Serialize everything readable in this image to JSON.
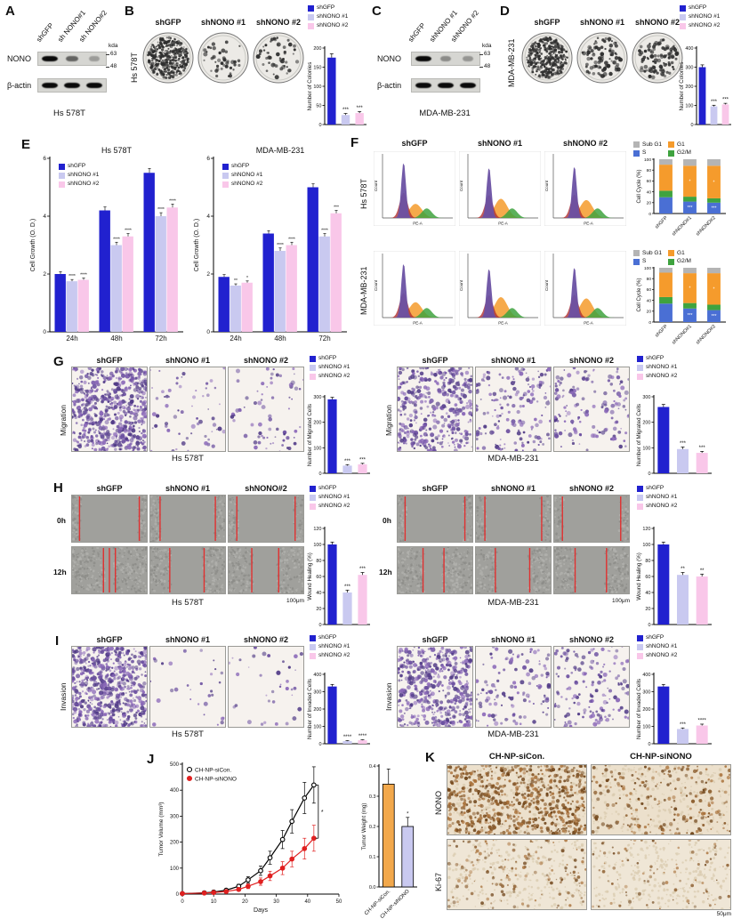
{
  "labels": {
    "panelA": {
      "letter": "A",
      "lanes": [
        "shGFP",
        "sh NONO#1",
        "sh NONO#2"
      ],
      "protein1": "NONO",
      "protein2": "β-actin",
      "kda": "kda",
      "mw1": "63",
      "mw2": "48",
      "cell": "Hs 578T"
    },
    "panelB": {
      "letter": "B",
      "side": "Hs 578T",
      "cols": [
        "shGFP",
        "shNONO #1",
        "shNONO #2"
      ]
    },
    "panelC": {
      "letter": "C",
      "lanes": [
        "shGFP",
        "shNONO #1",
        "shNONO #2"
      ],
      "protein1": "NONO",
      "protein2": "β-actin",
      "kda": "kda",
      "mw1": "63",
      "mw2": "48",
      "cell": "MDA-MB-231"
    },
    "panelD": {
      "letter": "D",
      "side": "MDA-MB-231",
      "cols": [
        "shGFP",
        "shNONO #1",
        "shNONO #2"
      ]
    },
    "panelE": {
      "letter": "E"
    },
    "panelF": {
      "letter": "F",
      "cols": [
        "shGFP",
        "shNONO #1",
        "shNONO #2"
      ],
      "row1": "Hs 578T",
      "row2": "MDA-MB-231"
    },
    "panelG": {
      "letter": "G",
      "side": "Migration",
      "cols": [
        "shGFP",
        "shNONO #1",
        "shNONO #2"
      ],
      "cell_left": "Hs 578T",
      "cell_right": "MDA-MB-231"
    },
    "panelH": {
      "letter": "H",
      "cols_left": [
        "shGFP",
        "shNONO #1",
        "shNONO#2"
      ],
      "cols_right": [
        "shGFP",
        "shNONO #1",
        "shNONO #2"
      ],
      "rows": [
        "0h",
        "12h"
      ],
      "cell_left": "Hs 578T",
      "cell_right": "MDA-MB-231",
      "scale": "100μm"
    },
    "panelI": {
      "letter": "I",
      "side": "Invasion",
      "cols": [
        "shGFP",
        "shNONO #1",
        "shNONO #2"
      ],
      "cell_left": "Hs 578T",
      "cell_right": "MDA-MB-231"
    },
    "panelJ": {
      "letter": "J"
    },
    "panelK": {
      "letter": "K",
      "cols": [
        "CH-NP-siCon.",
        "CH-NP-siNONO"
      ],
      "rows": [
        "NONO",
        "Ki-67"
      ],
      "scale": "50μm"
    }
  },
  "colors": {
    "shGFP": "#2121cf",
    "shNONO1": "#c9c9f0",
    "shNONO2": "#f9c7e9",
    "siCon_line": "#000000",
    "siNONO_line": "#e02020",
    "cycle_S": "#4a6fd4",
    "cycle_G2M": "#3fa33f",
    "cycle_G1": "#f59b2c",
    "cycle_SubG1": "#b4b4b4"
  },
  "chart_data": [
    {
      "id": "colonies_hs578t",
      "type": "bar",
      "ylabel": "Number of Colonies",
      "ylim": [
        0,
        200
      ],
      "yticks": [
        0,
        50,
        100,
        150,
        200
      ],
      "categories": [
        "shGFP",
        "shNONO #1",
        "shNONO #2"
      ],
      "values": [
        175,
        25,
        30
      ],
      "err": [
        10,
        4,
        4
      ],
      "sig": [
        "",
        "***",
        "***"
      ],
      "colors": [
        "#2121cf",
        "#c9c9f0",
        "#f9c7e9"
      ],
      "show_xlabels": false
    },
    {
      "id": "colonies_mda",
      "type": "bar",
      "ylabel": "Number of Colonies",
      "ylim": [
        0,
        400
      ],
      "yticks": [
        0,
        100,
        200,
        300,
        400
      ],
      "categories": [
        "shGFP",
        "shNONO #1",
        "shNONO #2"
      ],
      "values": [
        300,
        95,
        105
      ],
      "err": [
        12,
        6,
        6
      ],
      "sig": [
        "",
        "***",
        "***"
      ],
      "colors": [
        "#2121cf",
        "#c9c9f0",
        "#f9c7e9"
      ],
      "show_xlabels": false
    },
    {
      "id": "growth_hs578t",
      "type": "groupbar",
      "title": "Hs 578T",
      "ylabel": "Cell Growth (O. D.)",
      "ylim": [
        0,
        6
      ],
      "yticks": [
        0,
        2,
        4,
        6
      ],
      "categories": [
        "24h",
        "48h",
        "72h"
      ],
      "series": [
        {
          "name": "shGFP",
          "color": "#2121cf",
          "values": [
            2.0,
            4.2,
            5.5
          ],
          "err": [
            0.08,
            0.12,
            0.15
          ],
          "sig": [
            "",
            "",
            ""
          ]
        },
        {
          "name": "shNONO #1",
          "color": "#c9c9f0",
          "values": [
            1.75,
            3.0,
            4.0
          ],
          "err": [
            0.06,
            0.1,
            0.12
          ],
          "sig": [
            "****",
            "****",
            "****"
          ]
        },
        {
          "name": "shNONO #2",
          "color": "#f9c7e9",
          "values": [
            1.8,
            3.3,
            4.3
          ],
          "err": [
            0.06,
            0.1,
            0.12
          ],
          "sig": [
            "****",
            "****",
            "****"
          ]
        }
      ]
    },
    {
      "id": "growth_mda",
      "type": "groupbar",
      "title": "MDA-MB-231",
      "ylabel": "Cell Growth (O. D.)",
      "ylim": [
        0,
        6
      ],
      "yticks": [
        0,
        2,
        4,
        6
      ],
      "categories": [
        "24h",
        "48h",
        "72h"
      ],
      "series": [
        {
          "name": "shGFP",
          "color": "#2121cf",
          "values": [
            1.9,
            3.4,
            5.0
          ],
          "err": [
            0.08,
            0.1,
            0.12
          ],
          "sig": [
            "",
            "",
            ""
          ]
        },
        {
          "name": "shNONO #1",
          "color": "#c9c9f0",
          "values": [
            1.6,
            2.8,
            3.3
          ],
          "err": [
            0.06,
            0.1,
            0.1
          ],
          "sig": [
            "**",
            "****",
            "****"
          ]
        },
        {
          "name": "shNONO #2",
          "color": "#f9c7e9",
          "values": [
            1.7,
            3.0,
            4.1
          ],
          "err": [
            0.06,
            0.1,
            0.1
          ],
          "sig": [
            "*",
            "****",
            "***"
          ]
        }
      ]
    },
    {
      "id": "cycle_hs578t",
      "type": "stacked",
      "ylabel": "Cell Cycle (%)",
      "ylim": [
        0,
        100
      ],
      "yticks": [
        0,
        20,
        40,
        60,
        80,
        100
      ],
      "categories": [
        "shGFP",
        "shNONO#1",
        "shNONO#2"
      ],
      "series": [
        {
          "name": "S",
          "color": "#4a6fd4",
          "values": [
            30,
            22,
            20
          ]
        },
        {
          "name": "G2/M",
          "color": "#3fa33f",
          "values": [
            12,
            9,
            8
          ]
        },
        {
          "name": "G1",
          "color": "#f59b2c",
          "values": [
            48,
            57,
            60
          ]
        },
        {
          "name": "Sub G1",
          "color": "#b4b4b4",
          "values": [
            10,
            12,
            12
          ]
        }
      ],
      "legend_order": [
        "Sub G1",
        "G1",
        "S",
        "G2/M"
      ],
      "seg_sig": [
        [
          1,
          0,
          "***"
        ],
        [
          2,
          0,
          "***"
        ],
        [
          1,
          2,
          "*"
        ],
        [
          2,
          2,
          "*"
        ]
      ]
    },
    {
      "id": "cycle_mda",
      "type": "stacked",
      "ylabel": "Cell Cycle (%)",
      "ylim": [
        0,
        100
      ],
      "yticks": [
        0,
        20,
        40,
        60,
        80,
        100
      ],
      "categories": [
        "shGFP",
        "shNONO#1",
        "shNONO#2"
      ],
      "series": [
        {
          "name": "S",
          "color": "#4a6fd4",
          "values": [
            34,
            25,
            22
          ]
        },
        {
          "name": "G2/M",
          "color": "#3fa33f",
          "values": [
            12,
            10,
            10
          ]
        },
        {
          "name": "G1",
          "color": "#f59b2c",
          "values": [
            45,
            55,
            58
          ]
        },
        {
          "name": "Sub G1",
          "color": "#b4b4b4",
          "values": [
            9,
            10,
            10
          ]
        }
      ],
      "legend_order": [
        "Sub G1",
        "G1",
        "S",
        "G2/M"
      ],
      "seg_sig": [
        [
          1,
          0,
          "***"
        ],
        [
          2,
          0,
          "***"
        ],
        [
          1,
          2,
          "*"
        ],
        [
          2,
          2,
          "*"
        ]
      ]
    },
    {
      "id": "migration_hs578t",
      "type": "bar",
      "ylabel": "Number of Migrated Cells",
      "ylim": [
        0,
        300
      ],
      "yticks": [
        0,
        100,
        200,
        300
      ],
      "categories": [
        "shGFP",
        "shNONO #1",
        "shNONO #2"
      ],
      "values": [
        290,
        30,
        35
      ],
      "err": [
        8,
        4,
        4
      ],
      "sig": [
        "",
        "***",
        "***"
      ],
      "colors": [
        "#2121cf",
        "#c9c9f0",
        "#f9c7e9"
      ],
      "show_xlabels": false
    },
    {
      "id": "migration_mda",
      "type": "bar",
      "ylabel": "Number of Migrated Cells",
      "ylim": [
        0,
        300
      ],
      "yticks": [
        0,
        100,
        200,
        300
      ],
      "categories": [
        "shGFP",
        "shNONO #1",
        "shNONO #2"
      ],
      "values": [
        260,
        95,
        80
      ],
      "err": [
        10,
        8,
        6
      ],
      "sig": [
        "",
        "***",
        "***"
      ],
      "colors": [
        "#2121cf",
        "#c9c9f0",
        "#f9c7e9"
      ],
      "show_xlabels": false
    },
    {
      "id": "wound_hs578t",
      "type": "bar",
      "ylabel": "Wound Healing (%)",
      "ylim": [
        0,
        120
      ],
      "yticks": [
        0,
        20,
        40,
        60,
        80,
        100,
        120
      ],
      "categories": [
        "shGFP",
        "shNONO #1",
        "shNONO #2"
      ],
      "values": [
        100,
        40,
        62
      ],
      "err": [
        3,
        3,
        3
      ],
      "sig": [
        "",
        "***",
        "***"
      ],
      "colors": [
        "#2121cf",
        "#c9c9f0",
        "#f9c7e9"
      ],
      "show_xlabels": false
    },
    {
      "id": "wound_mda",
      "type": "bar",
      "ylabel": "Wound Healing (%)",
      "ylim": [
        0,
        120
      ],
      "yticks": [
        0,
        20,
        40,
        60,
        80,
        100,
        120
      ],
      "categories": [
        "shGFP",
        "shNONO #1",
        "shNONO #2"
      ],
      "values": [
        100,
        62,
        60
      ],
      "err": [
        3,
        3,
        3
      ],
      "sig": [
        "",
        "**",
        "**"
      ],
      "colors": [
        "#2121cf",
        "#c9c9f0",
        "#f9c7e9"
      ],
      "show_xlabels": false
    },
    {
      "id": "invasion_hs578t",
      "type": "bar",
      "ylabel": "Number of Invaded Cells",
      "ylim": [
        0,
        400
      ],
      "yticks": [
        0,
        100,
        200,
        300,
        400
      ],
      "categories": [
        "shGFP",
        "shNONO #1",
        "shNONO #2"
      ],
      "values": [
        330,
        15,
        20
      ],
      "err": [
        12,
        3,
        3
      ],
      "sig": [
        "",
        "****",
        "****"
      ],
      "colors": [
        "#2121cf",
        "#c9c9f0",
        "#f9c7e9"
      ],
      "show_xlabels": false
    },
    {
      "id": "invasion_mda",
      "type": "bar",
      "ylabel": "Number of Invaded Cells",
      "ylim": [
        0,
        400
      ],
      "yticks": [
        0,
        100,
        200,
        300,
        400
      ],
      "categories": [
        "shGFP",
        "shNONO #1",
        "shNONO #2"
      ],
      "values": [
        330,
        85,
        105
      ],
      "err": [
        12,
        6,
        8
      ],
      "sig": [
        "",
        "***",
        "****"
      ],
      "colors": [
        "#2121cf",
        "#c9c9f0",
        "#f9c7e9"
      ],
      "show_xlabels": false
    },
    {
      "id": "tumor_volume",
      "type": "line",
      "xlabel": "Days",
      "ylabel": "Tumor Volume (mm³)",
      "xlim": [
        0,
        50
      ],
      "xticks": [
        0,
        10,
        20,
        30,
        40,
        50
      ],
      "ylim": [
        0,
        500
      ],
      "yticks": [
        0,
        100,
        200,
        300,
        400,
        500
      ],
      "x": [
        0,
        7,
        10,
        14,
        18,
        21,
        25,
        28,
        32,
        35,
        39,
        42
      ],
      "series": [
        {
          "name": "CH-NP-siCon.",
          "color": "#000000",
          "marker": "open",
          "values": [
            2,
            5,
            8,
            15,
            30,
            55,
            90,
            140,
            210,
            280,
            370,
            420
          ],
          "err": [
            2,
            3,
            4,
            5,
            8,
            12,
            18,
            25,
            35,
            45,
            60,
            70
          ]
        },
        {
          "name": "CH-NP-siNONO",
          "color": "#e02020",
          "marker": "filled",
          "values": [
            2,
            4,
            6,
            10,
            18,
            30,
            48,
            70,
            100,
            135,
            175,
            215
          ],
          "err": [
            2,
            2,
            3,
            4,
            6,
            9,
            14,
            18,
            25,
            30,
            40,
            50
          ]
        }
      ],
      "sig": "*"
    },
    {
      "id": "tumor_weight",
      "type": "bar",
      "ylabel": "Tumor Weight (mg)",
      "ylim": [
        0,
        0.4
      ],
      "yticks": [
        0,
        0.1,
        0.2,
        0.3,
        0.4
      ],
      "ytick_dp": 1,
      "categories": [
        "CH-NP-siCon.",
        "CH-NP-siNONO"
      ],
      "values": [
        0.34,
        0.2
      ],
      "err": [
        0.05,
        0.03
      ],
      "sig": [
        "",
        "*"
      ],
      "colors": [
        "#f2a84b",
        "#c9c9f0"
      ],
      "stroke": "#000",
      "rotate_xlabels": true
    }
  ]
}
